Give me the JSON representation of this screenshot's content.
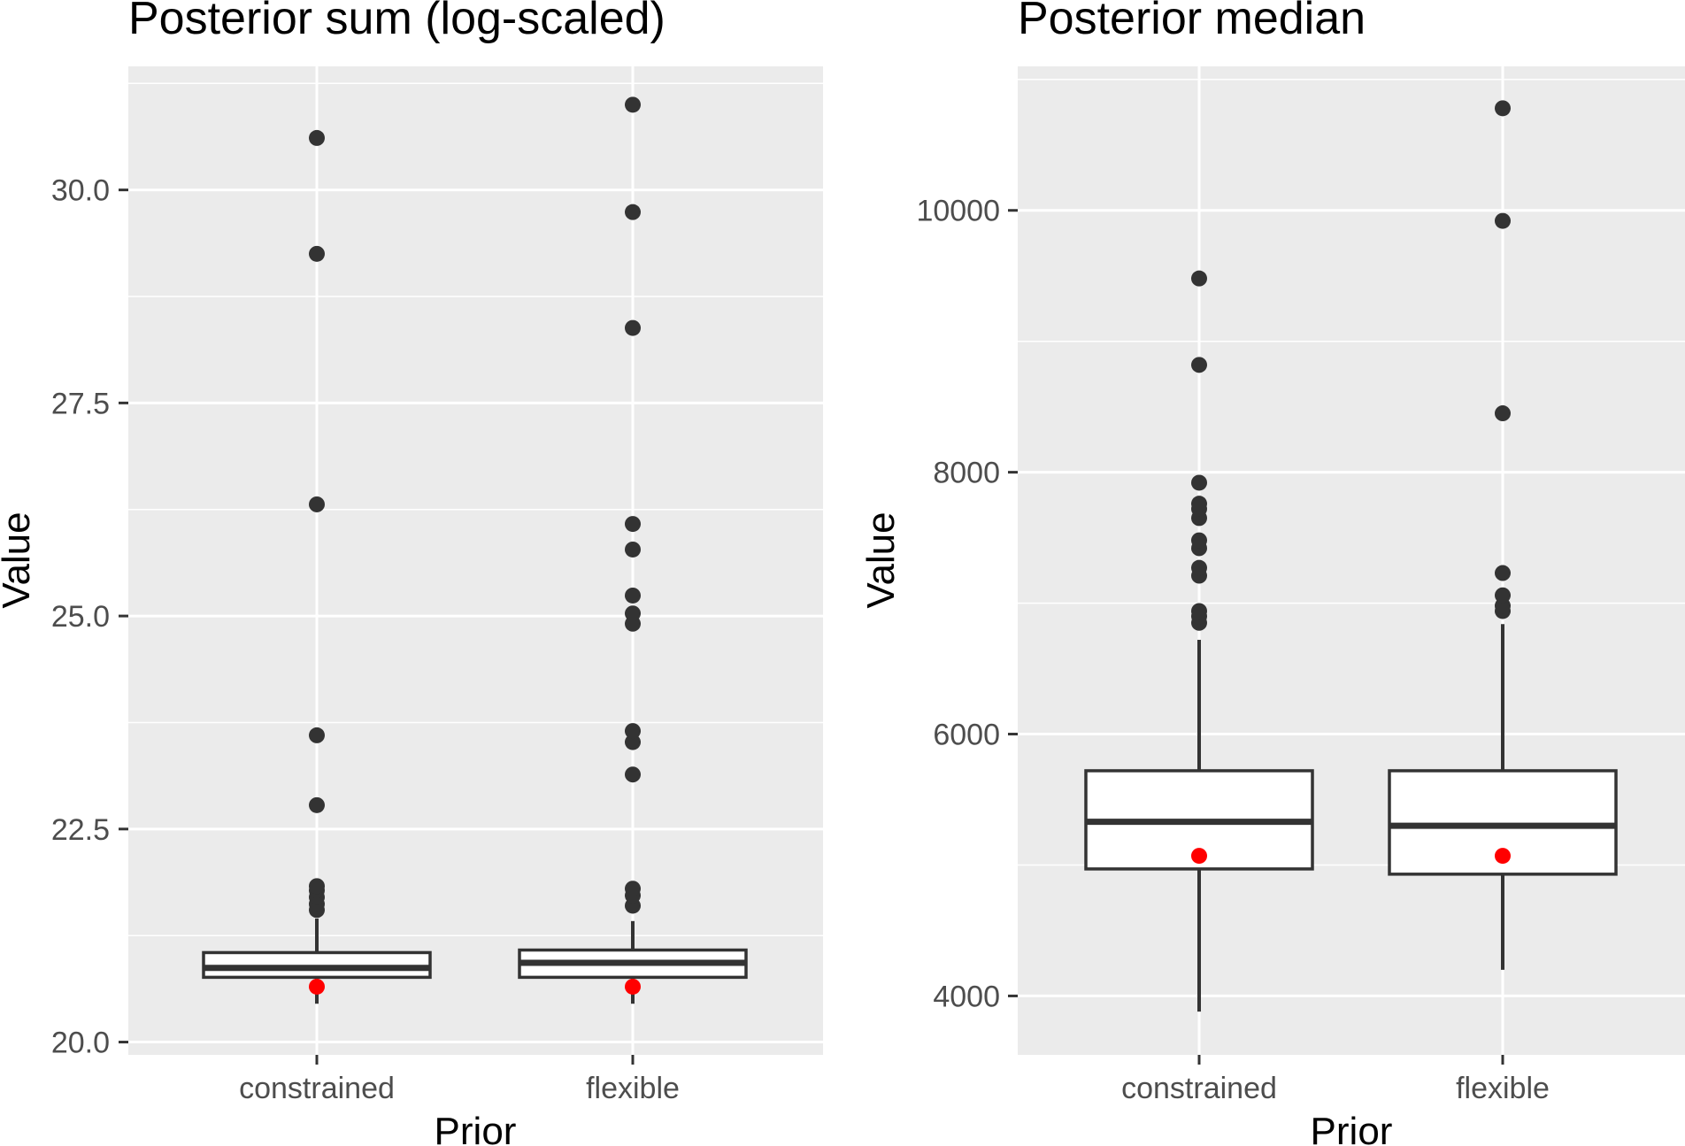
{
  "chart_data": [
    {
      "type": "boxplot",
      "title": "Posterior sum (log-scaled)",
      "xlabel": "Prior",
      "ylabel": "Value",
      "ylim": [
        19.85,
        31.45
      ],
      "yticks": [
        20.0,
        22.5,
        25.0,
        27.5,
        30.0
      ],
      "ytick_labels": [
        "20.0",
        "22.5",
        "25.0",
        "27.5",
        "30.0"
      ],
      "grid": true,
      "categories": [
        "constrained",
        "flexible"
      ],
      "boxes": [
        {
          "category": "constrained",
          "whisker_low": 20.45,
          "q1": 20.76,
          "median": 20.87,
          "q3": 21.05,
          "whisker_high": 21.45,
          "outliers": [
            21.55,
            21.62,
            21.7,
            21.78,
            21.83,
            22.78,
            23.6,
            26.31,
            29.25,
            30.61
          ],
          "marker": 20.65
        },
        {
          "category": "flexible",
          "whisker_low": 20.45,
          "q1": 20.76,
          "median": 20.93,
          "q3": 21.08,
          "whisker_high": 21.42,
          "outliers": [
            21.6,
            21.72,
            21.8,
            23.14,
            23.52,
            23.65,
            24.91,
            25.03,
            25.24,
            25.78,
            26.08,
            28.38,
            29.74,
            31.0
          ],
          "marker": 20.65
        }
      ],
      "colors": {
        "points": "#333333",
        "marker": "#ff0000",
        "panel": "#ebebeb",
        "box_fill": "#ffffff",
        "box_line": "#333333"
      }
    },
    {
      "type": "boxplot",
      "title": "Posterior median",
      "xlabel": "Prior",
      "ylabel": "Value",
      "ylim": [
        3550,
        11100
      ],
      "yticks": [
        4000,
        6000,
        8000,
        10000
      ],
      "ytick_labels": [
        "4000",
        "6000",
        "8000",
        "10000"
      ],
      "grid": true,
      "categories": [
        "constrained",
        "flexible"
      ],
      "boxes": [
        {
          "category": "constrained",
          "whisker_low": 3880,
          "q1": 4970,
          "median": 5330,
          "q3": 5720,
          "whisker_high": 6720,
          "outliers": [
            6850,
            6900,
            6940,
            7210,
            7270,
            7420,
            7480,
            7650,
            7720,
            7760,
            7920,
            8820,
            9480
          ],
          "marker": 5070
        },
        {
          "category": "flexible",
          "whisker_low": 4200,
          "q1": 4930,
          "median": 5300,
          "q3": 5720,
          "whisker_high": 6840,
          "outliers": [
            6940,
            6980,
            7060,
            7230,
            8450,
            9920,
            10780
          ],
          "marker": 5070
        }
      ],
      "colors": {
        "points": "#333333",
        "marker": "#ff0000",
        "panel": "#ebebeb",
        "box_fill": "#ffffff",
        "box_line": "#333333"
      }
    }
  ]
}
